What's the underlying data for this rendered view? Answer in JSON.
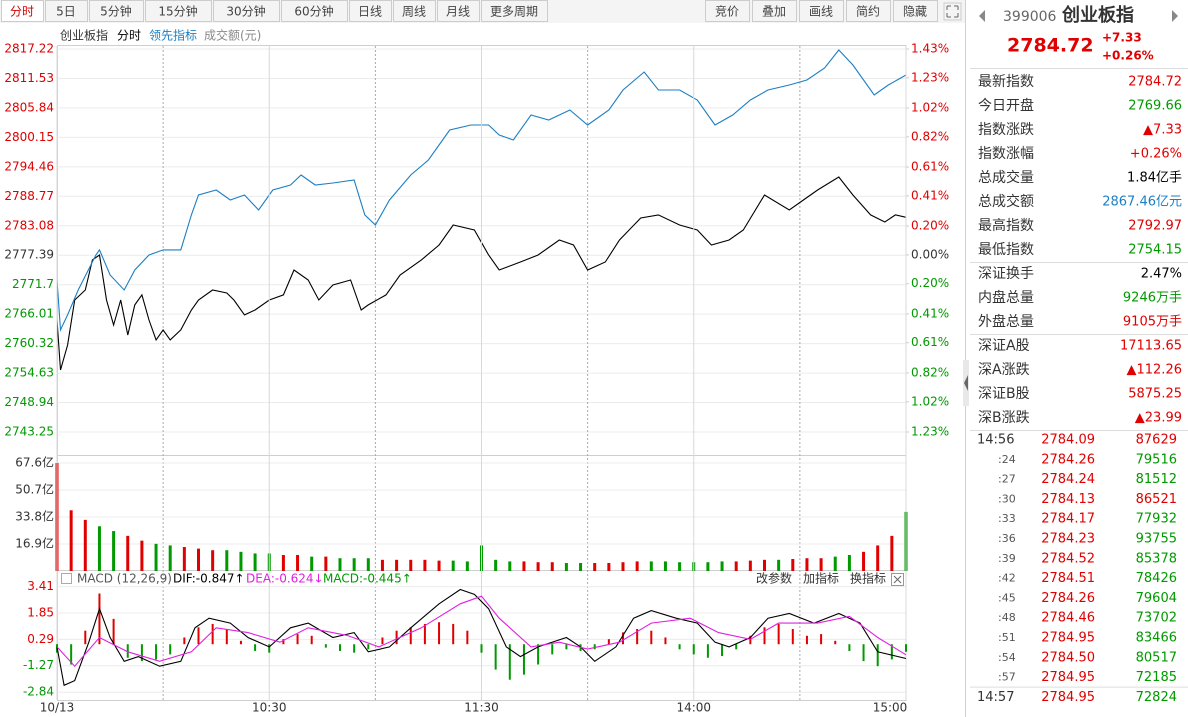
{
  "toolbar": {
    "left": [
      "分时",
      "5日",
      "5分钟",
      "15分钟",
      "30分钟",
      "60分钟",
      "日线",
      "周线",
      "月线",
      "更多周期"
    ],
    "right": [
      "竞价",
      "叠加",
      "画线",
      "简约",
      "隐藏"
    ]
  },
  "chart_data": [
    {
      "type": "line",
      "mode": "分时",
      "volume_label": "成交额(元)",
      "xlim": [
        0,
        240
      ],
      "xgrid": [
        30,
        90,
        150,
        210
      ],
      "ylim": [
        2743.25,
        2817.22
      ],
      "yticks": [
        2817.22,
        2811.53,
        2805.84,
        2800.15,
        2794.46,
        2788.77,
        2783.08,
        2777.39,
        2771.7,
        2766.01,
        2760.32,
        2754.63,
        2748.94,
        2743.25
      ],
      "y2lim": [
        -1.23,
        1.43
      ],
      "y2ticks": [
        {
          "value": 1.43,
          "label": "1.43%"
        },
        {
          "value": 1.23,
          "label": "1.23%"
        },
        {
          "value": 1.02,
          "label": "1.02%"
        },
        {
          "value": 0.82,
          "label": "0.82%"
        },
        {
          "value": 0.61,
          "label": "0.61%"
        },
        {
          "value": 0.41,
          "label": "0.41%"
        },
        {
          "value": 0.2,
          "label": "0.20%"
        },
        {
          "value": 0,
          "label": "0.00%"
        },
        {
          "value": -0.2,
          "label": "0.20%"
        },
        {
          "value": -0.41,
          "label": "0.41%"
        },
        {
          "value": -0.61,
          "label": "0.61%"
        },
        {
          "value": -0.82,
          "label": "0.82%"
        },
        {
          "value": -1.02,
          "label": "1.02%"
        },
        {
          "value": -1.23,
          "label": "1.23%"
        }
      ],
      "up_color": "#e00000",
      "down_color": "#009900",
      "series": [
        {
          "name": "创业板指",
          "color": "#000000",
          "x": [
            0,
            1,
            3,
            5,
            8,
            10,
            12,
            14,
            16,
            18,
            20,
            22,
            24,
            26,
            28,
            30,
            32,
            35,
            38,
            40,
            44,
            48,
            50,
            53,
            56,
            60,
            64,
            67,
            71,
            74,
            78,
            83,
            86,
            88,
            93,
            97,
            103,
            108,
            112,
            118,
            122,
            125,
            131,
            136,
            142,
            146,
            150,
            155,
            159,
            165,
            170,
            176,
            181,
            185,
            190,
            194,
            200,
            207,
            211,
            215,
            221,
            225,
            230,
            234,
            237,
            240
          ],
          "values": [
            2764.89,
            2755.23,
            2760.06,
            2768.75,
            2770.68,
            2776.48,
            2777.44,
            2768.75,
            2763.92,
            2768.75,
            2761.99,
            2767.79,
            2769.72,
            2764.89,
            2761.03,
            2762.96,
            2761.03,
            2762.96,
            2766.82,
            2768.75,
            2770.68,
            2770.1,
            2768.75,
            2765.86,
            2766.82,
            2768.75,
            2769.72,
            2774.54,
            2772.61,
            2768.75,
            2771.65,
            2772.61,
            2766.82,
            2767.79,
            2769.72,
            2773.58,
            2776.48,
            2779.37,
            2783.23,
            2782.27,
            2777.44,
            2774.54,
            2776.09,
            2777.44,
            2780.34,
            2779.37,
            2774.54,
            2776.09,
            2780.34,
            2784.59,
            2785.17,
            2783.23,
            2782.27,
            2779.37,
            2780.34,
            2782.27,
            2789.03,
            2786.13,
            2788.06,
            2789.99,
            2792.5,
            2789.03,
            2785.17,
            2783.81,
            2785.17,
            2784.72
          ]
        },
        {
          "name": "领先指标",
          "color": "#1c7fc4",
          "x": [
            0,
            1,
            3,
            6,
            11,
            12,
            15,
            19,
            22,
            26,
            30,
            35,
            38,
            40,
            45,
            49,
            53,
            57,
            61,
            66,
            69,
            73,
            78,
            84,
            87,
            90,
            94,
            100,
            105,
            111,
            117,
            122,
            125,
            129,
            134,
            139,
            145,
            150,
            156,
            160,
            166,
            170,
            176,
            181,
            186,
            191,
            196,
            201,
            207,
            212,
            217,
            221,
            225,
            231,
            235,
            240
          ],
          "values": [
            2772.61,
            2762.96,
            2765.86,
            2770.68,
            2777.44,
            2778.41,
            2773.58,
            2770.68,
            2774.54,
            2777.44,
            2778.41,
            2778.41,
            2785.17,
            2789.03,
            2789.99,
            2788.06,
            2789.03,
            2786.13,
            2789.99,
            2790.96,
            2792.89,
            2790.96,
            2791.34,
            2791.92,
            2785.17,
            2783.23,
            2788.06,
            2792.89,
            2795.79,
            2801.58,
            2802.55,
            2802.55,
            2800.61,
            2799.65,
            2804.48,
            2803.51,
            2805.44,
            2802.55,
            2805.44,
            2809.3,
            2812.78,
            2809.3,
            2809.3,
            2807.37,
            2802.55,
            2804.48,
            2807.37,
            2809.3,
            2810.27,
            2811.23,
            2813.55,
            2817.03,
            2814.13,
            2808.34,
            2810.27,
            2812.2
          ]
        }
      ]
    },
    {
      "type": "bar",
      "xlim": [
        0,
        240
      ],
      "ylim": [
        0,
        67.6
      ],
      "yticks": [
        {
          "value": 67.6,
          "label": "67.6亿"
        },
        {
          "value": 50.7,
          "label": "50.7亿"
        },
        {
          "value": 33.8,
          "label": "33.8亿"
        },
        {
          "value": 16.9,
          "label": "16.9亿"
        }
      ],
      "series": [
        {
          "color": "#e00000",
          "x": [
            0,
            4,
            8,
            20,
            24,
            36,
            40,
            44,
            64,
            68,
            76,
            92,
            96,
            100,
            104,
            108,
            132,
            136,
            140,
            152,
            156,
            160,
            164,
            192,
            196,
            200,
            208,
            212,
            216,
            228,
            232,
            236
          ],
          "values": [
            67.6,
            38,
            32,
            22,
            19,
            15,
            14,
            13,
            10,
            10,
            9,
            7,
            7,
            7,
            7,
            6.5,
            6,
            5.5,
            5.5,
            5,
            5,
            5.5,
            6,
            6,
            6.5,
            7,
            7.5,
            8,
            8,
            12,
            16,
            22
          ]
        },
        {
          "color": "#009900",
          "x": [
            12,
            16,
            28,
            32,
            48,
            52,
            56,
            60,
            72,
            80,
            84,
            88,
            112,
            116,
            120,
            124,
            128,
            144,
            148,
            168,
            172,
            176,
            180,
            184,
            188,
            204,
            220,
            224,
            240
          ],
          "values": [
            28,
            25,
            17,
            16,
            13,
            12,
            11,
            11,
            9,
            8,
            8,
            8,
            6.5,
            6,
            16,
            7,
            6,
            5,
            5,
            6,
            6,
            5.5,
            5.5,
            5.5,
            6,
            7,
            9,
            10,
            37
          ]
        }
      ]
    },
    {
      "type": "macd",
      "title": "MACD (12,26,9)",
      "buttons": [
        "改参数",
        "加指标",
        "换指标"
      ],
      "xlim": [
        0,
        240
      ],
      "ylim": [
        -3.3,
        3.8
      ],
      "yticks": [
        3.41,
        1.85,
        0.29,
        -1.27,
        -2.84
      ],
      "xticks": [
        {
          "value": 0,
          "label": "10/13"
        },
        {
          "value": 60,
          "label": "10:30"
        },
        {
          "value": 120,
          "label": "11:30"
        },
        {
          "value": 180,
          "label": "14:00"
        },
        {
          "value": 240,
          "label": "15:00"
        }
      ],
      "up_color": "#e00000",
      "down_color": "#009900",
      "bars": {
        "x": [
          0,
          4,
          8,
          12,
          16,
          20,
          24,
          28,
          32,
          36,
          40,
          44,
          48,
          52,
          56,
          60,
          64,
          68,
          72,
          76,
          80,
          84,
          88,
          92,
          96,
          100,
          104,
          108,
          112,
          116,
          120,
          124,
          128,
          132,
          136,
          140,
          144,
          148,
          152,
          156,
          160,
          164,
          168,
          172,
          176,
          180,
          184,
          188,
          192,
          196,
          200,
          204,
          208,
          212,
          216,
          220,
          224,
          228,
          232,
          236,
          240
        ],
        "values": [
          -0.5,
          -1.2,
          0.8,
          3.0,
          1.5,
          -0.8,
          -1.0,
          -0.9,
          -0.6,
          0.4,
          1.0,
          1.2,
          0.9,
          0.2,
          -0.4,
          -0.5,
          0.3,
          0.6,
          0.5,
          -0.2,
          -0.4,
          -0.5,
          -0.3,
          0.4,
          0.8,
          1.0,
          1.2,
          1.3,
          1.2,
          0.8,
          -0.5,
          -1.5,
          -2.1,
          -1.8,
          -1.2,
          -0.6,
          -0.3,
          -0.4,
          -0.3,
          0.3,
          0.7,
          0.9,
          0.8,
          0.4,
          -0.3,
          -0.6,
          -0.8,
          -0.7,
          -0.3,
          0.5,
          1.0,
          1.2,
          0.9,
          0.5,
          0.6,
          0.2,
          -0.4,
          -1.0,
          -1.3,
          -0.9,
          -0.445
        ]
      },
      "series": [
        {
          "legend": "DIF:-0.847↑",
          "color": "#000000",
          "x": [
            0,
            2,
            5,
            9,
            12,
            15,
            19,
            23,
            29,
            35,
            39,
            43,
            49,
            54,
            60,
            66,
            71,
            78,
            84,
            88,
            94,
            100,
            108,
            114,
            118,
            122,
            127,
            131,
            136,
            144,
            148,
            152,
            158,
            163,
            168,
            175,
            181,
            186,
            190,
            196,
            201,
            207,
            214,
            221,
            227,
            232,
            240
          ],
          "values": [
            -0.16,
            -2.43,
            -2.15,
            0.12,
            2.1,
            0.4,
            -1.01,
            -0.73,
            -1.3,
            -1.01,
            0.97,
            1.54,
            1.25,
            0.4,
            -0.16,
            0.97,
            1.25,
            0.4,
            0.69,
            -0.45,
            -0.16,
            0.97,
            2.39,
            3.24,
            2.95,
            2.1,
            -0.16,
            -0.73,
            -0.16,
            0.4,
            -0.16,
            -1.01,
            -0.16,
            1.54,
            1.99,
            1.54,
            1.25,
            0.12,
            -0.16,
            0.4,
            1.54,
            1.82,
            1.25,
            1.82,
            1.25,
            -0.45,
            -0.847
          ]
        },
        {
          "legend": "DEA:-0.624↓",
          "color": "#e020e0",
          "x": [
            0,
            5,
            12,
            20,
            29,
            38,
            45,
            54,
            63,
            71,
            82,
            91,
            103,
            114,
            120,
            125,
            134,
            142,
            150,
            159,
            168,
            179,
            187,
            196,
            204,
            215,
            224,
            232,
            240
          ],
          "values": [
            -0.16,
            -1.3,
            0.4,
            -0.45,
            -1.01,
            -0.45,
            0.97,
            0.69,
            0.12,
            0.97,
            0.52,
            -0.16,
            0.97,
            2.39,
            2.84,
            1.54,
            -0.16,
            0.12,
            -0.28,
            0.12,
            1.25,
            1.54,
            0.69,
            0.29,
            1.25,
            1.25,
            1.65,
            0.4,
            -0.624
          ]
        }
      ],
      "bar_legend": "MACD:-0.445↑",
      "bar_legend_color": "#009900"
    }
  ],
  "sidebar": {
    "code": "399006",
    "name": "创业板指",
    "price": "2784.72",
    "change": "+7.33",
    "change_pct": "+0.26%",
    "price_color": "#e00000",
    "groups": [
      [
        {
          "label": "最新指数",
          "value": "2784.72",
          "color": "#e00000"
        },
        {
          "label": "今日开盘",
          "value": "2769.66",
          "color": "#009900"
        },
        {
          "label": "指数涨跌",
          "value": "▲7.33",
          "color": "#e00000"
        },
        {
          "label": "指数涨幅",
          "value": "+0.26%",
          "color": "#e00000"
        },
        {
          "label": "总成交量",
          "value": "1.84亿手",
          "color": "#000000"
        },
        {
          "label": "总成交额",
          "value": "2867.46亿元",
          "color": "#1c7fc4"
        },
        {
          "label": "最高指数",
          "value": "2792.97",
          "color": "#e00000"
        },
        {
          "label": "最低指数",
          "value": "2754.15",
          "color": "#009900"
        }
      ],
      [
        {
          "label": "深证换手",
          "value": "2.47%",
          "color": "#000000"
        },
        {
          "label": "内盘总量",
          "value": "9246万手",
          "color": "#009900"
        },
        {
          "label": "外盘总量",
          "value": "9105万手",
          "color": "#e00000"
        }
      ],
      [
        {
          "label": "深证A股",
          "value": "17113.65",
          "color": "#e00000"
        },
        {
          "label": "深A涨跌",
          "value": "▲112.26",
          "color": "#e00000"
        },
        {
          "label": "深证B股",
          "value": "5875.25",
          "color": "#e00000"
        },
        {
          "label": "深B涨跌",
          "value": "▲23.99",
          "color": "#e00000"
        }
      ]
    ],
    "trades": [
      {
        "time": "14:56",
        "price": "2784.09",
        "volume": "87629",
        "volume_color": "#e00000"
      },
      {
        "time": ":24",
        "price": "2784.26",
        "volume": "79516",
        "volume_color": "#009900"
      },
      {
        "time": ":27",
        "price": "2784.24",
        "volume": "81512",
        "volume_color": "#009900"
      },
      {
        "time": ":30",
        "price": "2784.13",
        "volume": "86521",
        "volume_color": "#e00000"
      },
      {
        "time": ":33",
        "price": "2784.17",
        "volume": "77932",
        "volume_color": "#009900"
      },
      {
        "time": ":36",
        "price": "2784.23",
        "volume": "93755",
        "volume_color": "#009900"
      },
      {
        "time": ":39",
        "price": "2784.52",
        "volume": "85378",
        "volume_color": "#009900"
      },
      {
        "time": ":42",
        "price": "2784.51",
        "volume": "78426",
        "volume_color": "#009900"
      },
      {
        "time": ":45",
        "price": "2784.26",
        "volume": "79604",
        "volume_color": "#009900"
      },
      {
        "time": ":48",
        "price": "2784.46",
        "volume": "73702",
        "volume_color": "#009900"
      },
      {
        "time": ":51",
        "price": "2784.95",
        "volume": "83466",
        "volume_color": "#009900"
      },
      {
        "time": ":54",
        "price": "2784.50",
        "volume": "80517",
        "volume_color": "#009900"
      },
      {
        "time": ":57",
        "price": "2784.95",
        "volume": "72185",
        "volume_color": "#009900"
      },
      {
        "time": "14:57",
        "price": "2784.95",
        "volume": "72824",
        "volume_color": "#009900"
      }
    ]
  }
}
